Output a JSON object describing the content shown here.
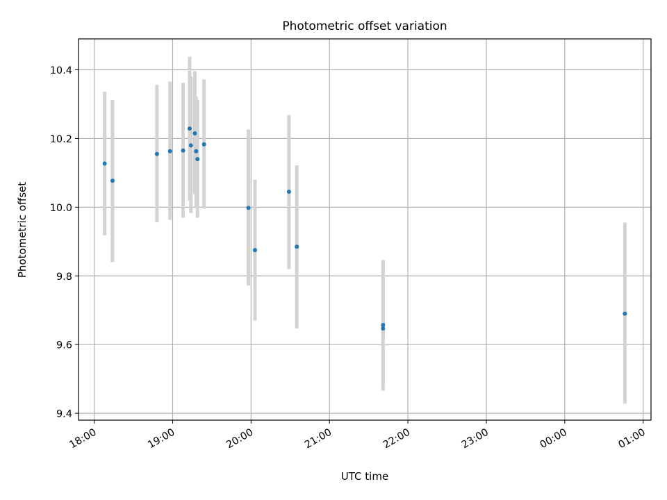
{
  "chart_data": {
    "type": "scatter",
    "title": "Photometric offset variation",
    "xlabel": "UTC time",
    "ylabel": "Photometric offset",
    "x_tick_labels": [
      "18:00",
      "19:00",
      "20:00",
      "21:00",
      "22:00",
      "23:00",
      "00:00",
      "01:00"
    ],
    "y_tick_labels": [
      "9.4",
      "9.6",
      "9.8",
      "10.0",
      "10.2",
      "10.4"
    ],
    "xlim": [
      "17:48",
      "01:06"
    ],
    "ylim": [
      9.38,
      10.49
    ],
    "grid": true,
    "legend": "none",
    "series": [
      {
        "marker_color": "#1f77b4",
        "errorbar_color": "#d3d3d3",
        "points": [
          {
            "x": "18:08",
            "y": 10.127,
            "ylow": 9.918,
            "yhigh": 10.336
          },
          {
            "x": "18:14",
            "y": 10.077,
            "ylow": 9.84,
            "yhigh": 10.312
          },
          {
            "x": "18:48",
            "y": 10.155,
            "ylow": 9.956,
            "yhigh": 10.356
          },
          {
            "x": "18:58",
            "y": 10.163,
            "ylow": 9.963,
            "yhigh": 10.366
          },
          {
            "x": "19:08",
            "y": 10.165,
            "ylow": 9.969,
            "yhigh": 10.362
          },
          {
            "x": "19:13",
            "y": 10.229,
            "ylow": 10.019,
            "yhigh": 10.438
          },
          {
            "x": "19:14",
            "y": 10.18,
            "ylow": 9.983,
            "yhigh": 10.38
          },
          {
            "x": "19:17",
            "y": 10.215,
            "ylow": 10.038,
            "yhigh": 10.396
          },
          {
            "x": "19:18",
            "y": 10.163,
            "ylow": 9.998,
            "yhigh": 10.322
          },
          {
            "x": "19:19",
            "y": 10.14,
            "ylow": 9.969,
            "yhigh": 10.312
          },
          {
            "x": "19:24",
            "y": 10.183,
            "ylow": 9.996,
            "yhigh": 10.372
          },
          {
            "x": "19:58",
            "y": 9.998,
            "ylow": 9.772,
            "yhigh": 10.226
          },
          {
            "x": "20:03",
            "y": 9.875,
            "ylow": 9.67,
            "yhigh": 10.08
          },
          {
            "x": "20:29",
            "y": 10.045,
            "ylow": 9.82,
            "yhigh": 10.268
          },
          {
            "x": "20:35",
            "y": 9.885,
            "ylow": 9.647,
            "yhigh": 10.122
          },
          {
            "x": "21:41",
            "y": 9.647,
            "ylow": 9.466,
            "yhigh": 9.846
          },
          {
            "x": "21:41",
            "y": 9.657,
            "ylow": 9.49,
            "yhigh": 9.84
          },
          {
            "x": "00:46",
            "y": 9.69,
            "ylow": 9.428,
            "yhigh": 9.955
          }
        ]
      }
    ]
  }
}
